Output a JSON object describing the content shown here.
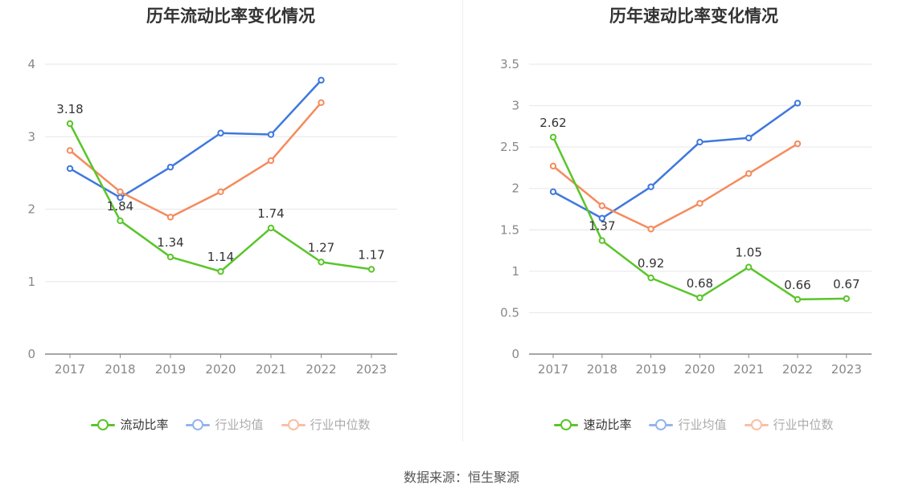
{
  "source": "数据来源：恒生聚源",
  "chart_data": [
    {
      "type": "line",
      "title": "历年流动比率变化情况",
      "x": [
        "2017",
        "2018",
        "2019",
        "2020",
        "2021",
        "2022",
        "2023"
      ],
      "ylim": [
        0,
        4
      ],
      "yticks": [
        "0",
        "1",
        "2",
        "3",
        "4"
      ],
      "grid": true,
      "legend_position": "bottom",
      "series": [
        {
          "name": "流动比率",
          "color": "#5ac52a",
          "values": [
            3.18,
            1.84,
            1.34,
            1.14,
            1.74,
            1.27,
            1.17
          ],
          "labels": [
            "3.18",
            "1.84",
            "1.34",
            "1.14",
            "1.74",
            "1.27",
            "1.17"
          ]
        },
        {
          "name": "行业均值",
          "color": "#3f78de",
          "values": [
            2.56,
            2.16,
            2.58,
            3.05,
            3.03,
            3.78,
            null
          ]
        },
        {
          "name": "行业中位数",
          "color": "#f58b5e",
          "values": [
            2.81,
            2.24,
            1.89,
            2.24,
            2.67,
            3.47,
            null
          ]
        }
      ]
    },
    {
      "type": "line",
      "title": "历年速动比率变化情况",
      "x": [
        "2017",
        "2018",
        "2019",
        "2020",
        "2021",
        "2022",
        "2023"
      ],
      "ylim": [
        0,
        3.5
      ],
      "yticks": [
        "0",
        "0.5",
        "1",
        "1.5",
        "2",
        "2.5",
        "3",
        "3.5"
      ],
      "grid": true,
      "legend_position": "bottom",
      "series": [
        {
          "name": "速动比率",
          "color": "#5ac52a",
          "values": [
            2.62,
            1.37,
            0.92,
            0.68,
            1.05,
            0.66,
            0.67
          ],
          "labels": [
            "2.62",
            "1.37",
            "0.92",
            "0.68",
            "1.05",
            "0.66",
            "0.67"
          ]
        },
        {
          "name": "行业均值",
          "color": "#3f78de",
          "values": [
            1.96,
            1.64,
            2.02,
            2.56,
            2.61,
            3.03,
            null
          ]
        },
        {
          "name": "行业中位数",
          "color": "#f58b5e",
          "values": [
            2.27,
            1.79,
            1.51,
            1.82,
            2.18,
            2.54,
            null
          ]
        }
      ]
    }
  ]
}
